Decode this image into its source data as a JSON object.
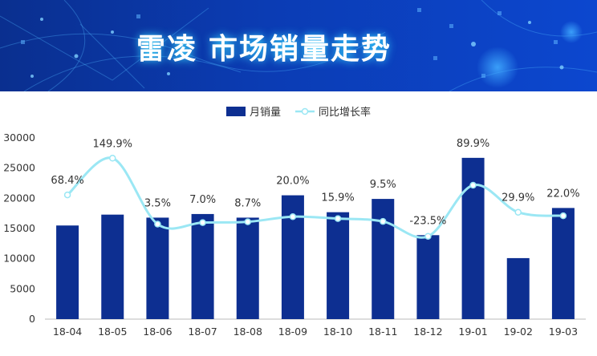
{
  "banner": {
    "title_part1": "雷凌",
    "title_part2": "市场销量走势",
    "colors": {
      "background": "#0b3cb4",
      "glow": "#38d8ff"
    }
  },
  "chart_data": {
    "type": "bar+line",
    "categories": [
      "18-04",
      "18-05",
      "18-06",
      "18-07",
      "18-08",
      "18-09",
      "18-10",
      "18-11",
      "18-12",
      "19-01",
      "19-02",
      "19-03"
    ],
    "series": [
      {
        "name": "月销量",
        "type": "bar",
        "color": "#0d2f91",
        "values": [
          15500,
          17300,
          16800,
          17400,
          16800,
          20500,
          17700,
          19900,
          13900,
          26700,
          10100,
          18400
        ]
      },
      {
        "name": "同比增长率",
        "type": "line",
        "color": "#9be7f4",
        "smooth": true,
        "values": [
          68.4,
          149.9,
          3.5,
          7.0,
          8.7,
          20.0,
          15.9,
          9.5,
          -23.5,
          89.9,
          29.9,
          22.0
        ],
        "labels": [
          "68.4%",
          "149.9%",
          "3.5%",
          "7.0%",
          "8.7%",
          "20.0%",
          "15.9%",
          "9.5%",
          "-23.5%",
          "89.9%",
          "29.9%",
          "22.0%"
        ]
      }
    ],
    "yticks": [
      "0",
      "5000",
      "10000",
      "15000",
      "20000",
      "25000",
      "30000"
    ],
    "ylim": [
      0,
      30000
    ],
    "grid": false,
    "legend": "top-center"
  }
}
